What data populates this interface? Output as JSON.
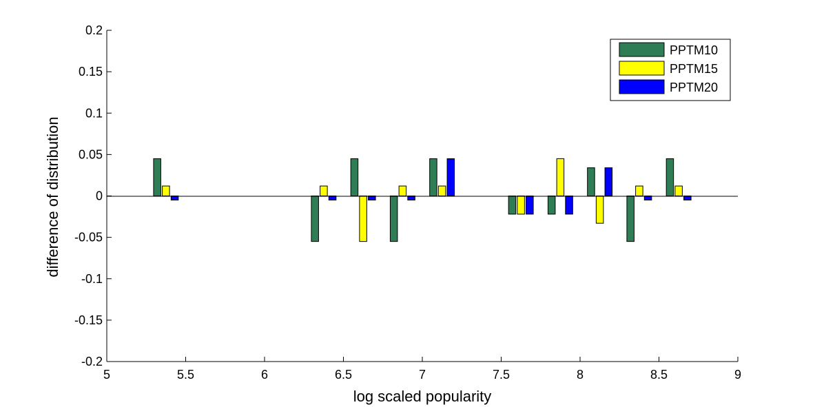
{
  "chart_data": {
    "type": "bar",
    "xlabel": "log scaled popularity",
    "ylabel": "difference of distribution",
    "xlim": [
      5,
      9
    ],
    "ylim": [
      -0.2,
      0.2
    ],
    "xticks": [
      "5",
      "5.5",
      "6",
      "6.5",
      "7",
      "7.5",
      "8",
      "8.5",
      "9"
    ],
    "yticks": [
      "-0.2",
      "-0.15",
      "-0.1",
      "-0.05",
      "0",
      "0.05",
      "0.1",
      "0.15",
      "0.2"
    ],
    "x": [
      5.375,
      6.375,
      6.625,
      6.875,
      7.125,
      7.625,
      7.875,
      8.125,
      8.375,
      8.625
    ],
    "series": [
      {
        "name": "PPTM10",
        "color": "#2e7d55",
        "values": [
          0.045,
          -0.055,
          0.045,
          -0.055,
          0.045,
          -0.022,
          -0.022,
          0.034,
          -0.055,
          0.045
        ]
      },
      {
        "name": "PPTM15",
        "color": "#ffff00",
        "values": [
          0.012,
          0.012,
          -0.055,
          0.012,
          0.012,
          -0.022,
          0.045,
          -0.033,
          0.012,
          0.012
        ]
      },
      {
        "name": "PPTM20",
        "color": "#0000ff",
        "values": [
          -0.005,
          -0.005,
          -0.005,
          -0.005,
          0.045,
          -0.022,
          -0.022,
          0.034,
          -0.005,
          -0.005
        ]
      }
    ],
    "grid": false,
    "legend_position": "top-right"
  }
}
